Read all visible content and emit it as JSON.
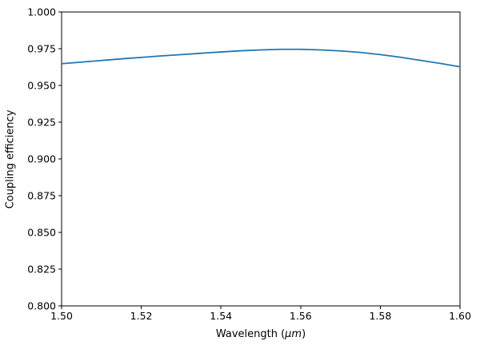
{
  "chart_data": {
    "type": "line",
    "title": "",
    "xlabel": "Wavelength (μm)",
    "xlabel_prefix": "Wavelength (",
    "xlabel_math": "μm",
    "xlabel_suffix": ")",
    "ylabel": "Coupling efficiency",
    "xlim": [
      1.5,
      1.6
    ],
    "ylim": [
      0.8,
      1.0
    ],
    "grid": false,
    "legend_position": "none",
    "xticks": {
      "values": [
        1.5,
        1.52,
        1.54,
        1.56,
        1.58,
        1.6
      ],
      "labels": [
        "1.50",
        "1.52",
        "1.54",
        "1.56",
        "1.58",
        "1.60"
      ]
    },
    "yticks": {
      "values": [
        0.8,
        0.825,
        0.85,
        0.875,
        0.9,
        0.925,
        0.95,
        0.975,
        1.0
      ],
      "labels": [
        "0.800",
        "0.825",
        "0.850",
        "0.875",
        "0.900",
        "0.925",
        "0.950",
        "0.975",
        "1.000"
      ]
    },
    "series": [
      {
        "name": "coupling-efficiency-curve",
        "color": "#1f77b4",
        "x": [
          1.5,
          1.505,
          1.51,
          1.515,
          1.52,
          1.525,
          1.53,
          1.535,
          1.54,
          1.545,
          1.55,
          1.555,
          1.56,
          1.565,
          1.57,
          1.575,
          1.58,
          1.585,
          1.59,
          1.595,
          1.6
        ],
        "y": [
          0.9648,
          0.9659,
          0.967,
          0.9681,
          0.9691,
          0.9701,
          0.971,
          0.9719,
          0.9728,
          0.9736,
          0.9742,
          0.9746,
          0.9746,
          0.9742,
          0.9735,
          0.9725,
          0.971,
          0.9692,
          0.9671,
          0.965,
          0.9627
        ]
      }
    ],
    "colors": {
      "line": "#1f77b4",
      "spine": "#000000",
      "tick_label": "#000000",
      "background": "#ffffff"
    }
  }
}
